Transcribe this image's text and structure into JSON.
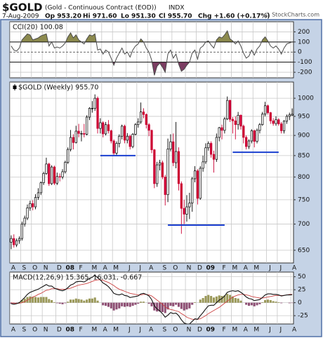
{
  "header": {
    "symbol": "$GOLD",
    "description": "(Gold - Continuous Contract (EOD))",
    "exchange": "INDX",
    "date": "7-Aug-2009",
    "quote": [
      "Op 953.20",
      "Hi 971.60",
      "Lo 951.30",
      "Cl 955.70",
      "Chg +1.60 (+0.17%)"
    ],
    "credit": "© StockCharts.com"
  },
  "chart_data": [
    {
      "type": "line",
      "title": "CCI(20) 100.08",
      "color": "#4a4a4a",
      "values": [
        60,
        20,
        10,
        40,
        120,
        150,
        180,
        170,
        120,
        130,
        140,
        160,
        170,
        180,
        60,
        100,
        40,
        50,
        40,
        60,
        90,
        150,
        190,
        140,
        170,
        120,
        100,
        80,
        130,
        170,
        160,
        180,
        20,
        30,
        -20,
        20,
        0,
        -60,
        -130,
        -60,
        -10,
        40,
        -20,
        0,
        -50,
        20,
        60,
        80,
        130,
        100,
        40,
        0,
        -80,
        -230,
        -140,
        -110,
        -150,
        -200,
        -20,
        20,
        -60,
        -20,
        -120,
        -190,
        -170,
        -130,
        -100,
        -10,
        20,
        -70,
        40,
        60,
        100,
        110,
        70,
        40,
        120,
        150,
        140,
        170,
        210,
        130,
        110,
        80,
        110,
        60,
        -10,
        -60,
        -40,
        20,
        -30,
        30,
        60,
        120,
        150,
        110,
        60,
        40,
        60,
        30,
        -20,
        40,
        80,
        90,
        100.08
      ],
      "bands": [
        -100,
        100
      ],
      "fill_above": "#8c8a4e",
      "fill_below": "#7b3d62",
      "ylim": [
        -255,
        300
      ],
      "yticks": [
        -200,
        -100,
        0,
        100,
        200
      ],
      "grid": true
    },
    {
      "type": "candlestick",
      "title": "$GOLD (Weekly) 955.70",
      "categories": [
        "A",
        null,
        null,
        null,
        "S",
        null,
        null,
        null,
        "O",
        null,
        null,
        null,
        "N",
        null,
        null,
        null,
        null,
        "D",
        null,
        null,
        null,
        "08",
        null,
        null,
        null,
        "F",
        null,
        null,
        null,
        null,
        "M",
        null,
        null,
        null,
        "A",
        null,
        null,
        null,
        "M",
        null,
        null,
        null,
        null,
        "J",
        null,
        null,
        null,
        "J",
        null,
        null,
        null,
        "A",
        null,
        null,
        null,
        null,
        "S",
        null,
        null,
        null,
        "O",
        null,
        null,
        null,
        null,
        "N",
        null,
        null,
        null,
        "D",
        null,
        null,
        null,
        "09",
        null,
        null,
        null,
        null,
        "F",
        null,
        null,
        null,
        "M",
        null,
        null,
        null,
        "A",
        null,
        null,
        null,
        "M",
        null,
        null,
        null,
        null,
        "J",
        null,
        null,
        null,
        "J",
        null,
        null,
        null,
        null,
        "A"
      ],
      "open": [
        665,
        672,
        660,
        668,
        672,
        700,
        712,
        733,
        742,
        735,
        755,
        765,
        787,
        808,
        830,
        785,
        823,
        786,
        801,
        800,
        812,
        834,
        865,
        895,
        882,
        911,
        905,
        905,
        903,
        948,
        972,
        972,
        1000,
        918,
        933,
        904,
        928,
        912,
        886,
        856,
        880,
        898,
        924,
        888,
        898,
        872,
        903,
        928,
        935,
        962,
        955,
        928,
        913,
        864,
        785,
        828,
        833,
        800,
        761,
        866,
        884,
        833,
        860,
        785,
        732,
        720,
        735,
        743,
        796,
        814,
        753,
        820,
        835,
        869,
        880,
        853,
        841,
        895,
        920,
        913,
        943,
        994,
        942,
        938,
        928,
        953,
        924,
        895,
        872,
        886,
        912,
        885,
        913,
        928,
        956,
        979,
        960,
        938,
        931,
        941,
        930,
        912,
        937,
        950,
        953.2
      ],
      "high": [
        678,
        680,
        672,
        676,
        705,
        717,
        740,
        748,
        749,
        762,
        775,
        790,
        812,
        845,
        833,
        827,
        826,
        810,
        808,
        818,
        838,
        870,
        914,
        903,
        925,
        930,
        912,
        930,
        953,
        975,
        992,
        1011,
        1005,
        945,
        937,
        935,
        940,
        915,
        890,
        885,
        903,
        928,
        928,
        906,
        902,
        906,
        932,
        945,
        988,
        972,
        958,
        932,
        915,
        866,
        835,
        840,
        838,
        805,
        892,
        903,
        905,
        935,
        870,
        790,
        750,
        760,
        765,
        800,
        825,
        818,
        825,
        850,
        880,
        885,
        885,
        862,
        905,
        922,
        928,
        948,
        1005,
        996,
        948,
        950,
        962,
        955,
        928,
        900,
        890,
        916,
        915,
        918,
        932,
        962,
        990,
        982,
        962,
        945,
        950,
        945,
        935,
        940,
        955,
        960,
        971.6
      ],
      "low": [
        652,
        655,
        656,
        662,
        668,
        695,
        708,
        727,
        728,
        730,
        750,
        760,
        782,
        805,
        780,
        782,
        782,
        782,
        790,
        795,
        808,
        830,
        860,
        865,
        880,
        895,
        885,
        895,
        900,
        940,
        960,
        965,
        905,
        905,
        895,
        900,
        905,
        880,
        850,
        850,
        870,
        890,
        880,
        880,
        865,
        868,
        900,
        920,
        930,
        945,
        918,
        898,
        856,
        775,
        778,
        815,
        795,
        738,
        745,
        860,
        825,
        820,
        770,
        681,
        700,
        705,
        710,
        725,
        788,
        740,
        750,
        812,
        830,
        862,
        845,
        810,
        835,
        885,
        890,
        905,
        940,
        935,
        905,
        890,
        915,
        915,
        880,
        865,
        866,
        880,
        870,
        880,
        905,
        925,
        950,
        955,
        930,
        925,
        925,
        925,
        905,
        905,
        930,
        940,
        951.3
      ],
      "close": [
        672,
        660,
        668,
        672,
        700,
        712,
        733,
        742,
        735,
        755,
        765,
        787,
        808,
        830,
        785,
        823,
        786,
        801,
        800,
        812,
        834,
        865,
        895,
        882,
        911,
        905,
        905,
        903,
        948,
        972,
        972,
        1000,
        918,
        933,
        904,
        928,
        912,
        886,
        856,
        880,
        898,
        924,
        888,
        898,
        872,
        903,
        928,
        935,
        962,
        955,
        928,
        913,
        864,
        785,
        828,
        833,
        800,
        761,
        866,
        884,
        833,
        860,
        785,
        732,
        720,
        735,
        743,
        796,
        814,
        753,
        820,
        835,
        869,
        880,
        853,
        841,
        895,
        920,
        913,
        943,
        994,
        942,
        938,
        928,
        953,
        924,
        895,
        872,
        886,
        912,
        885,
        913,
        928,
        956,
        979,
        960,
        938,
        931,
        941,
        930,
        912,
        937,
        950,
        954,
        955.7
      ],
      "up_color": "#000000",
      "down_color": "#cc0033",
      "support_lines": [
        {
          "value": 850,
          "x": [
            33,
            46
          ]
        },
        {
          "value": 698,
          "x": [
            58,
            79
          ]
        },
        {
          "value": 858,
          "x": [
            82,
            99
          ]
        }
      ],
      "support_color": "#1a3fd0",
      "ylim": [
        627,
        1047
      ],
      "yticks": [
        650,
        700,
        750,
        800,
        850,
        900,
        950,
        1000
      ],
      "log_scale": true,
      "grid": true
    },
    {
      "type": "macd",
      "title": "MACD(12,26,9) 15.365, 16.031, -0.667",
      "categories": [
        "A",
        null,
        null,
        null,
        "S",
        null,
        null,
        null,
        "O",
        null,
        null,
        null,
        "N",
        null,
        null,
        null,
        null,
        "D",
        null,
        null,
        null,
        "08",
        null,
        null,
        null,
        "F",
        null,
        null,
        null,
        null,
        "M",
        null,
        null,
        null,
        "A",
        null,
        null,
        null,
        "M",
        null,
        null,
        null,
        null,
        "J",
        null,
        null,
        null,
        "J",
        null,
        null,
        null,
        "A",
        null,
        null,
        null,
        null,
        "S",
        null,
        null,
        null,
        "O",
        null,
        null,
        null,
        null,
        "N",
        null,
        null,
        null,
        "D",
        null,
        null,
        null,
        "09",
        null,
        null,
        null,
        null,
        "F",
        null,
        null,
        null,
        "M",
        null,
        null,
        null,
        "A",
        null,
        null,
        null,
        "M",
        null,
        null,
        null,
        null,
        "J",
        null,
        null,
        null,
        "J",
        null,
        null,
        null,
        null,
        "A"
      ],
      "macd": {
        "color": "#111111",
        "values": [
          -2,
          -3,
          -2,
          0,
          5,
          10,
          16,
          20,
          22,
          24,
          26,
          29,
          32,
          35,
          32,
          32,
          28,
          26,
          24,
          23,
          25,
          29,
          34,
          36,
          40,
          41,
          41,
          40,
          43,
          47,
          49,
          53,
          48,
          44,
          38,
          35,
          31,
          25,
          18,
          16,
          15,
          17,
          14,
          13,
          10,
          11,
          12,
          13,
          17,
          18,
          16,
          13,
          6,
          -6,
          -12,
          -16,
          -21,
          -28,
          -24,
          -19,
          -21,
          -20,
          -25,
          -33,
          -39,
          -41,
          -41,
          -36,
          -31,
          -32,
          -25,
          -19,
          -12,
          -6,
          -5,
          -5,
          0,
          5,
          8,
          13,
          20,
          22,
          23,
          22,
          23,
          20,
          16,
          11,
          8,
          7,
          4,
          5,
          6,
          10,
          15,
          17,
          17,
          16,
          16,
          15,
          13,
          14,
          15,
          15,
          15.365
        ]
      },
      "signal": {
        "color": "#cc4444",
        "values": [
          0,
          -1,
          -1,
          -1,
          0,
          2,
          5,
          8,
          11,
          13,
          16,
          18,
          21,
          24,
          25,
          27,
          27,
          27,
          26,
          26,
          26,
          27,
          28,
          30,
          32,
          34,
          35,
          36,
          37,
          39,
          41,
          43,
          44,
          44,
          43,
          41,
          39,
          36,
          33,
          29,
          26,
          24,
          22,
          20,
          18,
          17,
          16,
          15,
          15,
          16,
          16,
          15,
          13,
          9,
          5,
          1,
          -3,
          -8,
          -11,
          -13,
          -14,
          -16,
          -17,
          -21,
          -24,
          -28,
          -30,
          -32,
          -32,
          -32,
          -31,
          -28,
          -25,
          -21,
          -18,
          -15,
          -12,
          -9,
          -5,
          -1,
          3,
          7,
          11,
          13,
          15,
          16,
          16,
          15,
          14,
          12,
          11,
          10,
          9,
          9,
          10,
          11,
          12,
          13,
          14,
          14,
          14,
          14,
          15,
          16,
          16.031
        ]
      },
      "histogram": {
        "positive_color": "#9a9858",
        "negative_color": "#8e4f74",
        "values": [
          -2,
          -2,
          -1,
          1,
          5,
          8,
          11,
          12,
          11,
          11,
          10,
          11,
          11,
          11,
          7,
          5,
          1,
          -1,
          -2,
          -3,
          -1,
          2,
          6,
          6,
          8,
          7,
          6,
          4,
          6,
          8,
          8,
          10,
          4,
          0,
          -5,
          -6,
          -8,
          -11,
          -15,
          -13,
          -11,
          -7,
          -8,
          -7,
          -8,
          -6,
          -4,
          -2,
          2,
          2,
          0,
          -2,
          -7,
          -15,
          -17,
          -17,
          -18,
          -20,
          -13,
          -6,
          -7,
          -4,
          -8,
          -12,
          -15,
          -13,
          -11,
          -4,
          1,
          0,
          6,
          9,
          13,
          15,
          13,
          10,
          12,
          14,
          13,
          14,
          17,
          15,
          12,
          9,
          8,
          4,
          0,
          -4,
          -6,
          -5,
          -7,
          -5,
          -3,
          1,
          5,
          6,
          5,
          3,
          2,
          1,
          -1,
          0,
          0,
          -1,
          -0.667
        ]
      },
      "ylim": [
        -41,
        59
      ],
      "yticks": [
        -25,
        0,
        25,
        50
      ],
      "grid": true
    }
  ]
}
